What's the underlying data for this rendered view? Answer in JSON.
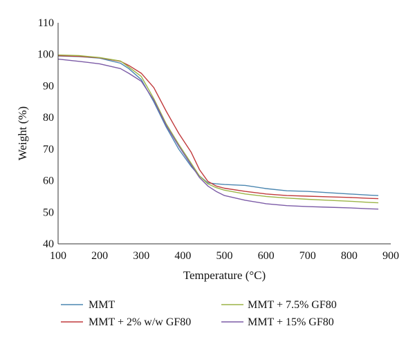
{
  "chart_data": {
    "type": "line",
    "xlabel": "Temperature (°C)",
    "ylabel": "Weight (%)",
    "xlim": [
      100,
      900
    ],
    "ylim": [
      40,
      110
    ],
    "xticks": [
      100,
      200,
      300,
      400,
      500,
      600,
      700,
      800,
      900
    ],
    "yticks": [
      40,
      50,
      60,
      70,
      80,
      90,
      100,
      110
    ],
    "grid": false,
    "legend_position": "bottom",
    "series": [
      {
        "name": "MMT",
        "color": "#4a86b0",
        "x": [
          100,
          150,
          200,
          250,
          270,
          300,
          330,
          360,
          390,
          420,
          440,
          460,
          480,
          500,
          550,
          600,
          650,
          700,
          750,
          800,
          850,
          870
        ],
        "y": [
          99.5,
          99.3,
          98.8,
          97.2,
          95.5,
          92.0,
          85.0,
          77.0,
          70.0,
          64.5,
          61.5,
          59.3,
          59.0,
          58.8,
          58.5,
          57.5,
          56.8,
          56.6,
          56.2,
          55.8,
          55.4,
          55.3
        ]
      },
      {
        "name": "MMT + 2% w/w GF80",
        "color": "#c0393b",
        "x": [
          100,
          150,
          200,
          250,
          270,
          300,
          330,
          360,
          390,
          420,
          440,
          460,
          480,
          500,
          550,
          600,
          650,
          700,
          750,
          800,
          850,
          870
        ],
        "y": [
          99.6,
          99.4,
          98.9,
          97.8,
          96.5,
          94.0,
          89.5,
          82.0,
          75.0,
          69.0,
          63.5,
          59.8,
          58.3,
          57.6,
          56.6,
          55.8,
          55.3,
          55.1,
          54.9,
          54.7,
          54.4,
          54.3
        ]
      },
      {
        "name": "MMT + 7.5% GF80",
        "color": "#9bb446",
        "x": [
          100,
          150,
          200,
          250,
          270,
          300,
          330,
          360,
          390,
          420,
          440,
          460,
          480,
          500,
          550,
          600,
          650,
          700,
          750,
          800,
          850,
          870
        ],
        "y": [
          99.8,
          99.6,
          99.0,
          97.9,
          96.0,
          93.0,
          86.0,
          78.0,
          71.5,
          65.5,
          61.5,
          59.0,
          57.8,
          57.0,
          55.8,
          55.0,
          54.5,
          54.1,
          53.8,
          53.5,
          53.1,
          53.0
        ]
      },
      {
        "name": "MMT + 15% GF80",
        "color": "#7b5aa6",
        "x": [
          100,
          150,
          200,
          250,
          270,
          300,
          330,
          360,
          390,
          420,
          440,
          460,
          480,
          500,
          550,
          600,
          650,
          700,
          750,
          800,
          850,
          870
        ],
        "y": [
          98.5,
          97.8,
          97.0,
          95.5,
          94.0,
          91.5,
          85.5,
          77.5,
          71.0,
          65.0,
          61.0,
          58.3,
          56.6,
          55.3,
          53.8,
          52.7,
          52.1,
          51.8,
          51.6,
          51.4,
          51.1,
          51.0
        ]
      }
    ]
  }
}
